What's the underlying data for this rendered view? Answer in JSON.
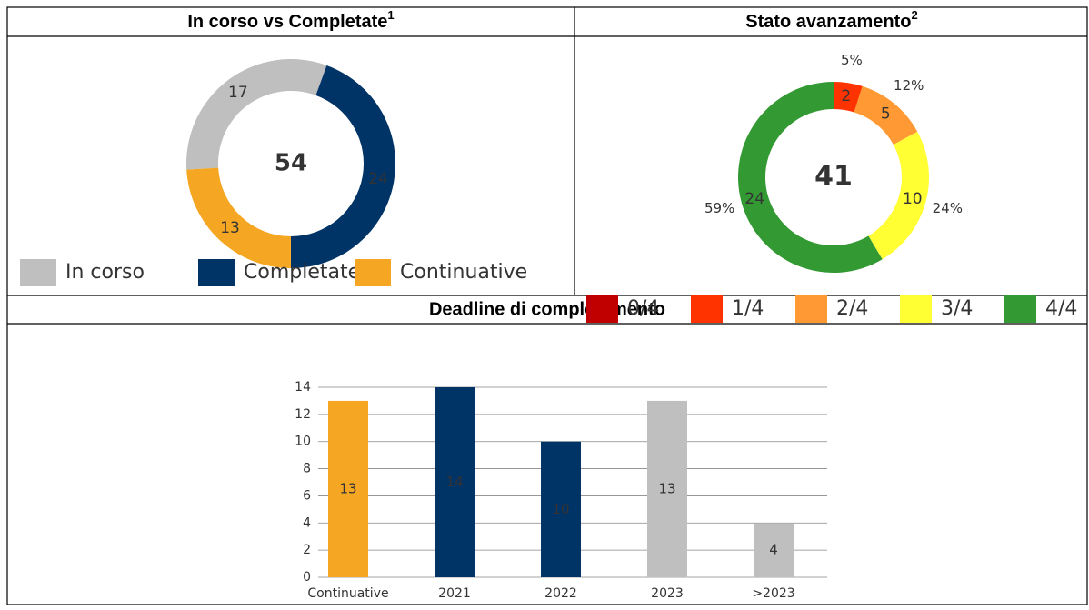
{
  "chart_data": [
    {
      "type": "donut",
      "title": "In corso vs Completate",
      "title_superscript": "1",
      "total": 54,
      "categories": [
        "In corso",
        "Completate",
        "Continuative"
      ],
      "values": [
        17,
        24,
        13
      ],
      "colors": [
        "#bfbfbf",
        "#003366",
        "#f5a623"
      ]
    },
    {
      "type": "donut",
      "title": "Stato avanzamento",
      "title_superscript": "2",
      "total": 41,
      "categories": [
        "0/4",
        "1/4",
        "2/4",
        "3/4",
        "4/4"
      ],
      "values": [
        0,
        2,
        5,
        10,
        24
      ],
      "percentages": [
        null,
        5,
        12,
        24,
        59
      ],
      "percentage_labels": [
        null,
        "5%",
        "12%",
        "24%",
        "59%"
      ],
      "colors": [
        "#c00000",
        "#ff3300",
        "#ff9933",
        "#ffff33",
        "#339933"
      ]
    },
    {
      "type": "bar",
      "title": "Deadline di completamento",
      "categories": [
        "Continuative",
        "2021",
        "2022",
        "2023",
        ">2023"
      ],
      "values": [
        13,
        14,
        10,
        13,
        4
      ],
      "colors": [
        "#f5a623",
        "#003366",
        "#003366",
        "#bfbfbf",
        "#bfbfbf"
      ],
      "ylim": [
        0,
        14
      ],
      "yticks": [
        0,
        2,
        4,
        6,
        8,
        10,
        12,
        14
      ],
      "grid": true
    }
  ]
}
